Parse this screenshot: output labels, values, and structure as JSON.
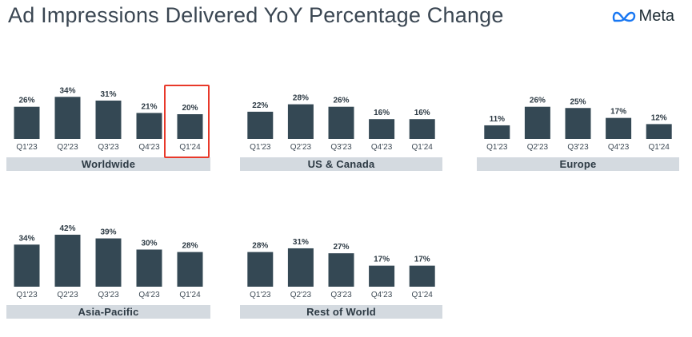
{
  "page": {
    "title": "Ad Impressions Delivered YoY Percentage Change",
    "logo_text": "Meta",
    "logo_icon": "meta-infinity-icon",
    "highlight_color": "#e8392a",
    "bar_color": "#344854",
    "label_bg_color": "#d4dae0"
  },
  "chart_data": [
    {
      "type": "bar",
      "region": "Worldwide",
      "categories": [
        "Q1'23",
        "Q2'23",
        "Q3'23",
        "Q4'23",
        "Q1'24"
      ],
      "values": [
        26,
        34,
        31,
        21,
        20
      ],
      "value_labels": [
        "26%",
        "34%",
        "31%",
        "21%",
        "20%"
      ],
      "highlighted_category": "Q1'24",
      "ylim": [
        0,
        42
      ]
    },
    {
      "type": "bar",
      "region": "US & Canada",
      "categories": [
        "Q1'23",
        "Q2'23",
        "Q3'23",
        "Q4'23",
        "Q1'24"
      ],
      "values": [
        22,
        28,
        26,
        16,
        16
      ],
      "value_labels": [
        "22%",
        "28%",
        "26%",
        "16%",
        "16%"
      ],
      "ylim": [
        0,
        42
      ]
    },
    {
      "type": "bar",
      "region": "Europe",
      "categories": [
        "Q1'23",
        "Q2'23",
        "Q3'23",
        "Q4'23",
        "Q1'24"
      ],
      "values": [
        11,
        26,
        25,
        17,
        12
      ],
      "value_labels": [
        "11%",
        "26%",
        "25%",
        "17%",
        "12%"
      ],
      "ylim": [
        0,
        42
      ]
    },
    {
      "type": "bar",
      "region": "Asia-Pacific",
      "categories": [
        "Q1'23",
        "Q2'23",
        "Q3'23",
        "Q4'23",
        "Q1'24"
      ],
      "values": [
        34,
        42,
        39,
        30,
        28
      ],
      "value_labels": [
        "34%",
        "42%",
        "39%",
        "30%",
        "28%"
      ],
      "ylim": [
        0,
        42
      ]
    },
    {
      "type": "bar",
      "region": "Rest of World",
      "categories": [
        "Q1'23",
        "Q2'23",
        "Q3'23",
        "Q4'23",
        "Q1'24"
      ],
      "values": [
        28,
        31,
        27,
        17,
        17
      ],
      "value_labels": [
        "28%",
        "31%",
        "27%",
        "17%",
        "17%"
      ],
      "ylim": [
        0,
        42
      ]
    }
  ]
}
